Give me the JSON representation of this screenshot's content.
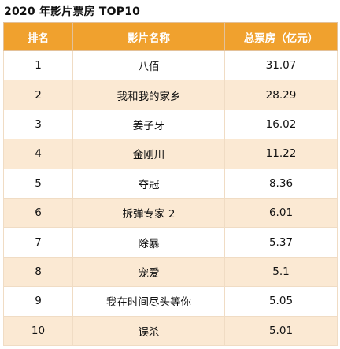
{
  "title": "2020 年影片票房 TOP10",
  "chart_data": {
    "type": "table",
    "columns": [
      "排名",
      "影片名称",
      "总票房（亿元）"
    ],
    "rows": [
      [
        "1",
        "八佰",
        "31.07"
      ],
      [
        "2",
        "我和我的家乡",
        "28.29"
      ],
      [
        "3",
        "姜子牙",
        "16.02"
      ],
      [
        "4",
        "金刚川",
        "11.22"
      ],
      [
        "5",
        "夺冠",
        "8.36"
      ],
      [
        "6",
        "拆弹专家 2",
        "6.01"
      ],
      [
        "7",
        "除暴",
        "5.37"
      ],
      [
        "8",
        "宠爱",
        "5.1"
      ],
      [
        "9",
        "我在时间尽头等你",
        "5.05"
      ],
      [
        "10",
        "误杀",
        "5.01"
      ]
    ]
  },
  "colors": {
    "header_bg": "#f0a12e",
    "row_odd": "#ffffff",
    "row_even": "#fbe9d3",
    "border": "#f0dcc4"
  }
}
